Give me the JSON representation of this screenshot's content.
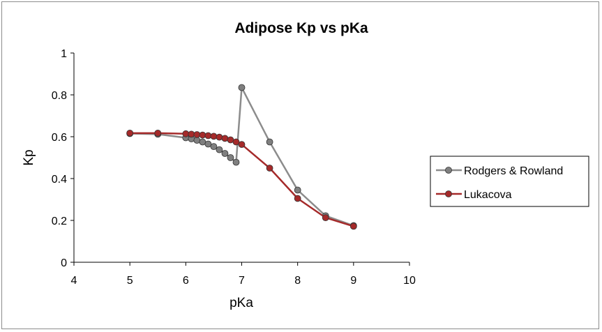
{
  "chart_data": {
    "type": "line",
    "title": "Adipose Kp vs pKa",
    "xlabel": "pKa",
    "ylabel": "Kp",
    "xlim": [
      4,
      10
    ],
    "ylim": [
      0,
      1
    ],
    "xticks": [
      4,
      5,
      6,
      7,
      8,
      9,
      10
    ],
    "yticks": [
      0,
      0.2,
      0.4,
      0.6,
      0.8,
      1
    ],
    "xtick_labels": [
      "4",
      "5",
      "6",
      "7",
      "8",
      "9",
      "10"
    ],
    "ytick_labels": [
      "0",
      "0.2",
      "0.4",
      "0.6",
      "0.8",
      "1"
    ],
    "grid": false,
    "legend_position": "right",
    "series": [
      {
        "name": "Rodgers & Rowland",
        "line_color": "#8c8c8c",
        "marker_color": "#7f7f7f",
        "x": [
          5,
          5.5,
          6,
          6.1,
          6.2,
          6.3,
          6.4,
          6.5,
          6.6,
          6.7,
          6.8,
          6.9,
          7,
          7.5,
          8,
          8.5,
          9
        ],
        "y": [
          0.615,
          0.612,
          0.595,
          0.59,
          0.583,
          0.575,
          0.565,
          0.553,
          0.538,
          0.52,
          0.5,
          0.478,
          0.835,
          0.575,
          0.345,
          0.222,
          0.175
        ]
      },
      {
        "name": "Lukacova",
        "line_color": "#a52a2a",
        "marker_color": "#a52a2a",
        "x": [
          5,
          5.5,
          6,
          6.1,
          6.2,
          6.3,
          6.4,
          6.5,
          6.6,
          6.7,
          6.8,
          6.9,
          7,
          7.5,
          8,
          8.5,
          9
        ],
        "y": [
          0.617,
          0.617,
          0.614,
          0.612,
          0.61,
          0.608,
          0.605,
          0.602,
          0.598,
          0.592,
          0.585,
          0.575,
          0.563,
          0.45,
          0.305,
          0.213,
          0.172
        ]
      }
    ]
  }
}
